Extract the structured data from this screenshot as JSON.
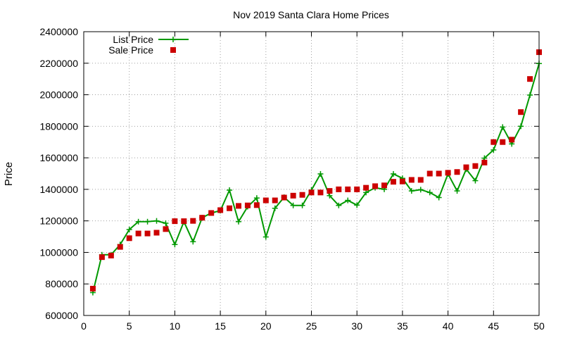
{
  "chart_data": {
    "type": "line",
    "title": "Nov 2019 Santa Clara Home Prices",
    "xlabel": "",
    "ylabel": "Price",
    "xlim": [
      0,
      50
    ],
    "ylim": [
      600000,
      2400000
    ],
    "x_ticks": [
      "0",
      "5",
      "10",
      "15",
      "20",
      "25",
      "30",
      "35",
      "40",
      "45",
      "50"
    ],
    "y_ticks": [
      "600000",
      "800000",
      "1000000",
      "1200000",
      "1400000",
      "1600000",
      "1800000",
      "2000000",
      "2200000",
      "2400000"
    ],
    "grid": true,
    "legend_position": "top-left",
    "x": [
      1,
      2,
      3,
      4,
      5,
      6,
      7,
      8,
      9,
      10,
      11,
      12,
      13,
      14,
      15,
      16,
      17,
      18,
      19,
      20,
      21,
      22,
      23,
      24,
      25,
      26,
      27,
      28,
      29,
      30,
      31,
      32,
      33,
      34,
      35,
      36,
      37,
      38,
      39,
      40,
      41,
      42,
      43,
      44,
      45,
      46,
      47,
      48,
      49,
      50
    ],
    "series": [
      {
        "name": "List Price",
        "style": "line-plus",
        "color": "#009900",
        "values": [
          745000,
          985000,
          985000,
          1050000,
          1145000,
          1195000,
          1195000,
          1200000,
          1185000,
          1050000,
          1195000,
          1068000,
          1220000,
          1250000,
          1265000,
          1395000,
          1195000,
          1290000,
          1345000,
          1098000,
          1280000,
          1350000,
          1298000,
          1298000,
          1395000,
          1498000,
          1360000,
          1298000,
          1330000,
          1300000,
          1380000,
          1410000,
          1400000,
          1498000,
          1470000,
          1390000,
          1398000,
          1380000,
          1348000,
          1498000,
          1390000,
          1528000,
          1455000,
          1598000,
          1650000,
          1795000,
          1688000,
          1800000,
          1998000,
          2198000
        ]
      },
      {
        "name": "Sale Price",
        "style": "square",
        "color": "#cc0000",
        "values": [
          770000,
          970000,
          980000,
          1035000,
          1090000,
          1120000,
          1120000,
          1125000,
          1148000,
          1198000,
          1198000,
          1200000,
          1220000,
          1250000,
          1268000,
          1280000,
          1295000,
          1298000,
          1300000,
          1330000,
          1330000,
          1348000,
          1360000,
          1365000,
          1380000,
          1380000,
          1390000,
          1400000,
          1400000,
          1400000,
          1410000,
          1420000,
          1425000,
          1448000,
          1450000,
          1460000,
          1460000,
          1500000,
          1500000,
          1505000,
          1510000,
          1540000,
          1548000,
          1570000,
          1700000,
          1700000,
          1715000,
          1890000,
          2100000,
          2270000
        ]
      }
    ]
  }
}
